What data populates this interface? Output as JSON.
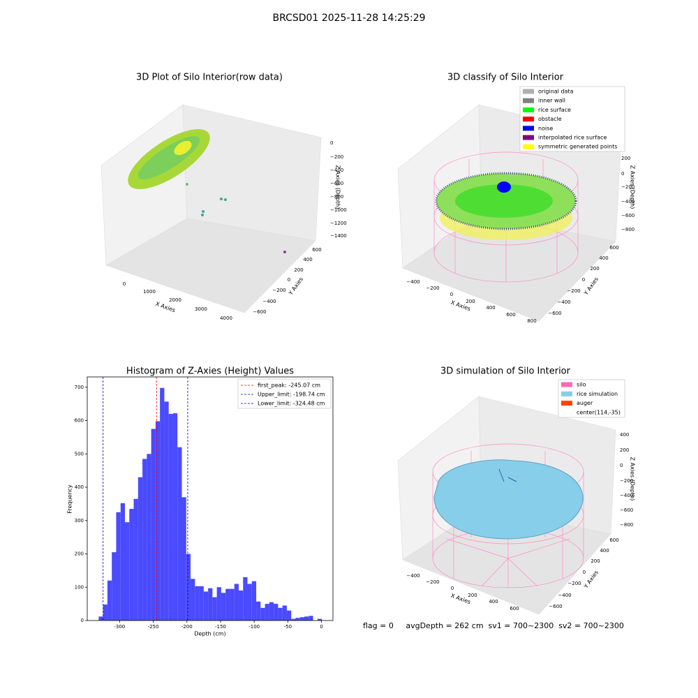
{
  "title": "BRCSD01 2025-11-28 14:25:29",
  "raw_plot": {
    "title": "3D Plot of Silo Interior(row data)",
    "x_label": "X Axies",
    "y_label": "Y Axies",
    "z_label": "Z Axies (Depth)",
    "xticks": [
      "0",
      "1000",
      "2000",
      "3000",
      "4000"
    ],
    "yticks": [
      "−600",
      "−400",
      "−200",
      "0",
      "200",
      "400",
      "600"
    ],
    "zticks": [
      "0",
      "−200",
      "−400",
      "−600",
      "−800",
      "−1000",
      "−1200",
      "−1400"
    ]
  },
  "classify_plot": {
    "title": "3D classify of Silo Interior",
    "x_label": "X Axies",
    "y_label": "Y Axies",
    "z_label": "Z Axies (Depth)",
    "xticks": [
      "−400",
      "−200",
      "0",
      "200",
      "400",
      "600",
      "800"
    ],
    "yticks": [
      "−600",
      "−400",
      "−200",
      "0",
      "200",
      "400",
      "600"
    ],
    "zticks": [
      "200",
      "0",
      "−200",
      "−400",
      "−600",
      "−800"
    ],
    "legend": [
      {
        "name": "original data",
        "color": "#b0b0b0"
      },
      {
        "name": "inner wall",
        "color": "#808080"
      },
      {
        "name": "rice surface",
        "color": "#00ff00"
      },
      {
        "name": "obstacle",
        "color": "#ff0000"
      },
      {
        "name": "noise",
        "color": "#0000ff"
      },
      {
        "name": "interpolated rice surface",
        "color": "#800080"
      },
      {
        "name": "symmetric generated points",
        "color": "#ffff00"
      }
    ]
  },
  "chart_data": {
    "type": "histogram",
    "title": "Histogram of Z-Axies (Height) Values",
    "x_label": "Depth (cm)",
    "y_label": "Frequency",
    "color": "#4a4aff",
    "bins": [
      -331.0,
      -324.5,
      -318.0,
      -311.5,
      -305.0,
      -298.5,
      -292.0,
      -285.5,
      -279.0,
      -272.5,
      -266.0,
      -259.5,
      -253.0,
      -246.5,
      -240.0,
      -233.5,
      -227.0,
      -220.5,
      -214.0,
      -207.5,
      -201.0,
      -194.5,
      -188.0,
      -181.5,
      -175.0,
      -168.5,
      -162.0,
      -155.5,
      -149.0,
      -142.5,
      -136.0,
      -129.5,
      -123.0,
      -116.5,
      -110.0,
      -103.5,
      -97.0,
      -90.5,
      -84.0,
      -77.5,
      -71.0,
      -64.5,
      -58.0,
      -51.5,
      -45.0,
      -38.5,
      -32.0,
      -25.5,
      -19.0,
      -12.5,
      -6.0,
      0.5
    ],
    "counts": [
      12,
      48,
      120,
      205,
      325,
      352,
      295,
      335,
      365,
      430,
      485,
      500,
      575,
      598,
      698,
      657,
      620,
      622,
      520,
      370,
      200,
      125,
      103,
      103,
      87,
      97,
      70,
      100,
      83,
      95,
      95,
      110,
      90,
      130,
      110,
      118,
      57,
      38,
      50,
      55,
      50,
      38,
      45,
      30,
      5,
      8,
      10,
      12,
      14,
      0,
      5
    ],
    "xlim": [
      -348,
      17
    ],
    "ylim": [
      0,
      731
    ],
    "xticks": [
      -300,
      -250,
      -200,
      -150,
      -100,
      -50,
      0
    ],
    "yticks": [
      0,
      100,
      200,
      300,
      400,
      500,
      600,
      700
    ],
    "lines": [
      {
        "name": "first_peak: -245.07 cm",
        "value": -245.07,
        "color": "#ff0000"
      },
      {
        "name": "Upper_limit: -198.74 cm",
        "value": -198.74,
        "color": "#0000aa"
      },
      {
        "name": "Lower_limit: -324.48 cm",
        "value": -324.48,
        "color": "#0000aa"
      }
    ],
    "legend": "upper right"
  },
  "simulation_plot": {
    "title": "3D simulation of Silo Interior",
    "x_label": "X Axies",
    "y_label": "Y Axies",
    "z_label": "Z Axies (Depth)",
    "xticks": [
      "−400",
      "−200",
      "0",
      "200",
      "400",
      "600"
    ],
    "yticks": [
      "−600",
      "−400",
      "−200",
      "0",
      "200",
      "400",
      "600"
    ],
    "zticks": [
      "400",
      "200",
      "0",
      "−200",
      "−400",
      "−600",
      "−800"
    ],
    "legend": [
      {
        "name": "silo",
        "color": "#ff69b4"
      },
      {
        "name": "rice simulation",
        "color": "#87ceeb"
      },
      {
        "name": "auger",
        "color": "#ff4500"
      },
      {
        "name": "center(114,-35)"
      }
    ]
  },
  "status": "flag = 0     avgDepth = 262 cm  sv1 = 700~2300  sv2 = 700~2300"
}
